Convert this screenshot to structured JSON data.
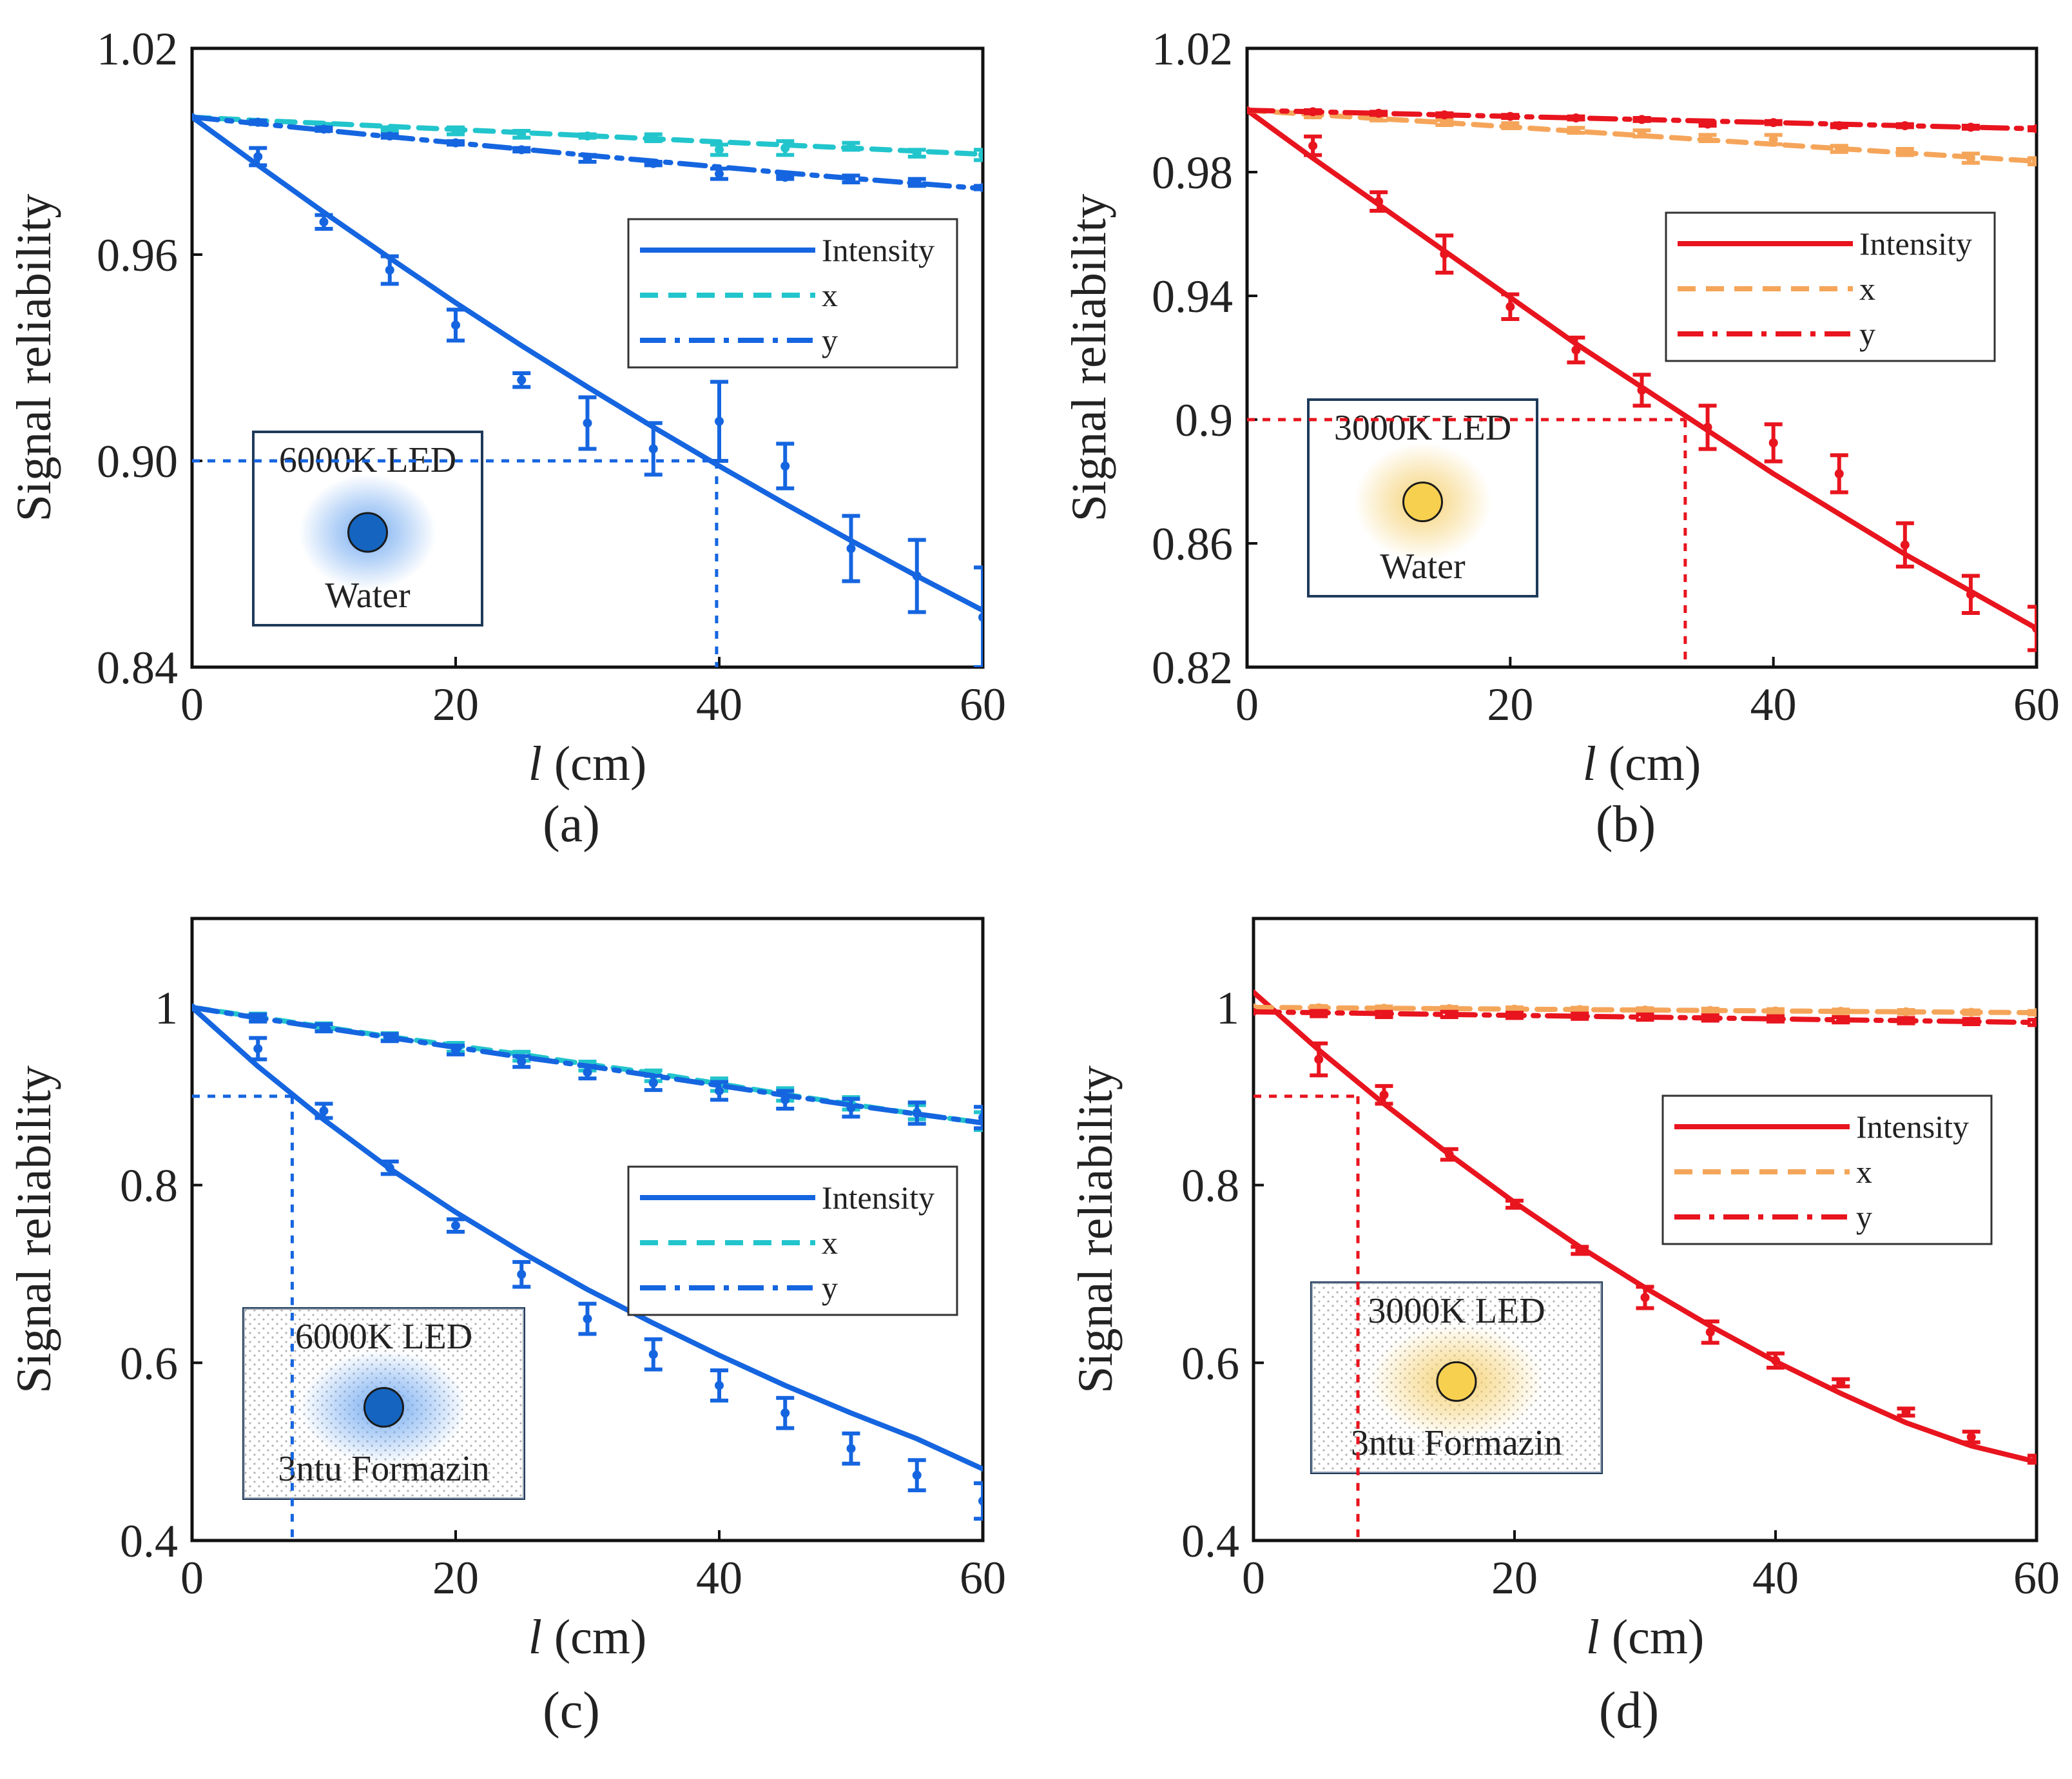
{
  "figure": {
    "background": "#ffffff"
  },
  "chart_data": [
    {
      "panel": "(a)",
      "type": "line",
      "title": "",
      "xlabel": "l (cm)",
      "xlabel_var": "l",
      "xlabel_unit": " (cm)",
      "ylabel": "Signal reliability",
      "xlim": [
        0,
        60
      ],
      "ylim": [
        0.84,
        1.02
      ],
      "xticks": [
        0,
        20,
        40,
        60
      ],
      "yticks": [
        0.84,
        0.9,
        0.96,
        1.02
      ],
      "ytick_labels": [
        "0.84",
        "0.90",
        "0.96",
        "1.02"
      ],
      "colors": {
        "intensity": "#1565e0",
        "x": "#22c5cc",
        "y": "#1565e0"
      },
      "legend": [
        "Intensity",
        "x",
        "y"
      ],
      "inset": {
        "label": "6000K LED",
        "medium": "Water",
        "led_color": "#1565c0",
        "glow_color": "#6fa8f0",
        "speckle": false
      },
      "threshold": {
        "y": 0.9,
        "x": 39.8
      },
      "x": [
        0,
        5,
        10,
        15,
        20,
        25,
        30,
        35,
        40,
        45,
        50,
        55,
        60
      ],
      "series": [
        {
          "name": "Intensity",
          "style": "solid",
          "fit": [
            1.0,
            0.986,
            0.9723,
            0.959,
            0.946,
            0.9335,
            0.9215,
            0.9098,
            0.8985,
            0.8875,
            0.8768,
            0.8665,
            0.8565
          ],
          "points": [
            1.0,
            0.9885,
            0.9695,
            0.9555,
            0.9395,
            0.9235,
            0.911,
            0.9035,
            0.9115,
            0.8985,
            0.8745,
            0.8665,
            0.8545
          ],
          "errors": [
            0,
            0.0025,
            0.002,
            0.004,
            0.0045,
            0.002,
            0.0075,
            0.0075,
            0.0115,
            0.0065,
            0.0095,
            0.0105,
            0.0145
          ]
        },
        {
          "name": "x",
          "style": "dashed",
          "fit": [
            1.0,
            0.999,
            0.9982,
            0.9973,
            0.9964,
            0.9955,
            0.9946,
            0.9937,
            0.9928,
            0.9919,
            0.991,
            0.9901,
            0.9892
          ],
          "points": [
            1.0,
            0.9985,
            0.9975,
            0.9965,
            0.996,
            0.995,
            0.9945,
            0.994,
            0.9905,
            0.991,
            0.9915,
            0.9895,
            0.989
          ],
          "errors": [
            0,
            0.0005,
            0.0005,
            0.0005,
            0.001,
            0.001,
            0.0005,
            0.001,
            0.0015,
            0.002,
            0.001,
            0.001,
            0.0015
          ]
        },
        {
          "name": "y",
          "style": "dashdot",
          "fit": [
            1.0,
            0.9981,
            0.9962,
            0.9943,
            0.9925,
            0.9907,
            0.9889,
            0.9872,
            0.9855,
            0.9838,
            0.9822,
            0.9807,
            0.9792
          ],
          "points": [
            1.0,
            0.9985,
            0.9965,
            0.9945,
            0.9925,
            0.9905,
            0.988,
            0.9865,
            0.9835,
            0.9825,
            0.982,
            0.981,
            0.9795
          ],
          "errors": [
            0,
            0.0005,
            0.0005,
            0.0005,
            0.0005,
            0.0005,
            0.001,
            0.0005,
            0.0015,
            0.0005,
            0.001,
            0.001,
            0.0005
          ]
        }
      ]
    },
    {
      "panel": "(b)",
      "type": "line",
      "title": "",
      "xlabel": "l (cm)",
      "xlabel_var": "l",
      "xlabel_unit": " (cm)",
      "ylabel": "Signal reliability",
      "xlim": [
        0,
        60
      ],
      "ylim": [
        0.82,
        1.02
      ],
      "xticks": [
        0,
        20,
        40,
        60
      ],
      "yticks": [
        0.82,
        0.86,
        0.9,
        0.94,
        0.98,
        1.02
      ],
      "ytick_labels": [
        "0.82",
        "0.86",
        "0.9",
        "0.94",
        "0.98",
        "1.02"
      ],
      "colors": {
        "intensity": "#e8141e",
        "x": "#f5a55a",
        "y": "#e8141e"
      },
      "legend": [
        "Intensity",
        "x",
        "y"
      ],
      "inset": {
        "label": "3000K LED",
        "medium": "Water",
        "led_color": "#f7d050",
        "glow_color": "#f5d070",
        "speckle": false
      },
      "threshold": {
        "y": 0.9,
        "x": 33.3
      },
      "x": [
        0,
        5,
        10,
        15,
        20,
        25,
        30,
        35,
        40,
        45,
        50,
        55,
        60
      ],
      "series": [
        {
          "name": "Intensity",
          "style": "solid",
          "fit": [
            1.0,
            0.9845,
            0.9695,
            0.9545,
            0.9395,
            0.9245,
            0.9105,
            0.8965,
            0.8825,
            0.8695,
            0.8565,
            0.8445,
            0.8325
          ],
          "points": [
            1.0,
            0.9885,
            0.9705,
            0.9535,
            0.9365,
            0.9225,
            0.9095,
            0.8975,
            0.8925,
            0.8825,
            0.8595,
            0.8435,
            0.8325
          ],
          "errors": [
            0,
            0.003,
            0.003,
            0.006,
            0.004,
            0.004,
            0.005,
            0.007,
            0.006,
            0.006,
            0.007,
            0.006,
            0.007
          ]
        },
        {
          "name": "x",
          "style": "dashed",
          "fit": [
            1.0,
            0.9986,
            0.9973,
            0.996,
            0.9946,
            0.9932,
            0.9918,
            0.9904,
            0.989,
            0.9876,
            0.9862,
            0.9849,
            0.9835
          ],
          "points": [
            1.0,
            0.9985,
            0.9975,
            0.996,
            0.995,
            0.9935,
            0.9925,
            0.991,
            0.9905,
            0.9875,
            0.9865,
            0.9845,
            0.9835
          ],
          "errors": [
            0,
            0.0008,
            0.0008,
            0.0008,
            0.0008,
            0.0008,
            0.001,
            0.001,
            0.0015,
            0.001,
            0.001,
            0.0015,
            0.001
          ]
        },
        {
          "name": "y",
          "style": "dashdot",
          "fit": [
            1.0,
            0.9995,
            0.999,
            0.9985,
            0.998,
            0.9975,
            0.997,
            0.9965,
            0.996,
            0.9955,
            0.995,
            0.9945,
            0.994
          ],
          "points": [
            1.0,
            0.9995,
            0.999,
            0.9985,
            0.998,
            0.9975,
            0.997,
            0.9955,
            0.996,
            0.995,
            0.995,
            0.9945,
            0.994
          ],
          "errors": [
            0,
            0.0005,
            0.0005,
            0.0005,
            0.0005,
            0.0005,
            0.0005,
            0.0005,
            0.0005,
            0.0005,
            0.0005,
            0.0005,
            0.0005
          ]
        }
      ]
    },
    {
      "panel": "(c)",
      "type": "line",
      "title": "",
      "xlabel": "l (cm)",
      "xlabel_var": "l",
      "xlabel_unit": " (cm)",
      "ylabel": "Signal reliability",
      "xlim": [
        0,
        60
      ],
      "ylim": [
        0.4,
        1.1
      ],
      "xticks": [
        0,
        20,
        40,
        60
      ],
      "yticks": [
        0.4,
        0.6,
        0.8,
        1.0
      ],
      "ytick_labels": [
        "0.4",
        "0.6",
        "0.8",
        "1"
      ],
      "colors": {
        "intensity": "#1565e0",
        "x": "#22c5cc",
        "y": "#1565e0"
      },
      "legend": [
        "Intensity",
        "x",
        "y"
      ],
      "inset": {
        "label": "6000K LED",
        "medium": "3ntu Formazin",
        "led_color": "#1565c0",
        "glow_color": "#6fa8f0",
        "speckle": true
      },
      "threshold": {
        "y": 0.9,
        "x": 7.6
      },
      "x": [
        0,
        5,
        10,
        15,
        20,
        25,
        30,
        35,
        40,
        45,
        50,
        55,
        60
      ],
      "series": [
        {
          "name": "Intensity",
          "style": "solid",
          "fit": [
            1.0,
            0.9335,
            0.8735,
            0.8185,
            0.7695,
            0.7245,
            0.6825,
            0.6445,
            0.6085,
            0.5745,
            0.5435,
            0.5145,
            0.4805
          ],
          "points": [
            1.0,
            0.9535,
            0.8835,
            0.8195,
            0.7545,
            0.6995,
            0.6495,
            0.6095,
            0.5745,
            0.5435,
            0.5035,
            0.4735,
            0.4445
          ],
          "errors": [
            0,
            0.012,
            0.008,
            0.007,
            0.007,
            0.014,
            0.017,
            0.017,
            0.017,
            0.017,
            0.017,
            0.017,
            0.02
          ]
        },
        {
          "name": "x",
          "style": "dashed",
          "fit": [
            1.0,
            0.989,
            0.978,
            0.967,
            0.957,
            0.947,
            0.936,
            0.926,
            0.914,
            0.902,
            0.891,
            0.88,
            0.87
          ],
          "points": [
            1.0,
            0.989,
            0.978,
            0.967,
            0.955,
            0.945,
            0.934,
            0.923,
            0.913,
            0.902,
            0.892,
            0.882,
            0.872
          ],
          "errors": [
            0,
            0.004,
            0.004,
            0.004,
            0.005,
            0.005,
            0.005,
            0.006,
            0.007,
            0.007,
            0.007,
            0.008,
            0.01
          ]
        },
        {
          "name": "y",
          "style": "dashdot",
          "fit": [
            1.0,
            0.988,
            0.977,
            0.966,
            0.955,
            0.944,
            0.934,
            0.923,
            0.912,
            0.901,
            0.89,
            0.88,
            0.87
          ],
          "points": [
            1.0,
            0.988,
            0.977,
            0.966,
            0.952,
            0.939,
            0.927,
            0.915,
            0.906,
            0.896,
            0.887,
            0.881,
            0.876
          ],
          "errors": [
            0,
            0.004,
            0.004,
            0.004,
            0.005,
            0.006,
            0.007,
            0.008,
            0.01,
            0.01,
            0.01,
            0.012,
            0.012
          ]
        }
      ]
    },
    {
      "panel": "(d)",
      "type": "line",
      "title": "",
      "xlabel": "l (cm)",
      "xlabel_var": "l",
      "xlabel_unit": " (cm)",
      "ylabel": "Signal reliability",
      "xlim": [
        0,
        60
      ],
      "ylim": [
        0.4,
        1.1
      ],
      "xticks": [
        0,
        20,
        40,
        60
      ],
      "yticks": [
        0.4,
        0.6,
        0.8,
        1.0
      ],
      "ytick_labels": [
        "0.4",
        "0.6",
        "0.8",
        "1"
      ],
      "colors": {
        "intensity": "#e8141e",
        "x": "#f5a55a",
        "y": "#e8141e"
      },
      "legend": [
        "Intensity",
        "x",
        "y"
      ],
      "inset": {
        "label": "3000K LED",
        "medium": "3ntu Formazin",
        "led_color": "#f7d050",
        "glow_color": "#f5d070",
        "speckle": true
      },
      "threshold": {
        "y": 0.9,
        "x": 8.0
      },
      "x": [
        0,
        5,
        10,
        15,
        20,
        25,
        30,
        35,
        40,
        45,
        50,
        55,
        60
      ],
      "series": [
        {
          "name": "Intensity",
          "style": "solid",
          "fit": [
            1.017,
            0.952,
            0.8915,
            0.8345,
            0.7805,
            0.7305,
            0.6845,
            0.6415,
            0.6015,
            0.5655,
            0.5325,
            0.5065,
            0.4885
          ],
          "points": [
            1.0,
            0.9415,
            0.9015,
            0.8345,
            0.7785,
            0.7265,
            0.6735,
            0.6345,
            0.6025,
            0.5775,
            0.5445,
            0.5165,
            0.4915
          ],
          "errors": [
            0,
            0.018,
            0.01,
            0.006,
            0.004,
            0.004,
            0.012,
            0.012,
            0.008,
            0.004,
            0.004,
            0.006,
            0.004
          ]
        },
        {
          "name": "x",
          "style": "dashed",
          "fit": [
            1.0,
            0.9995,
            0.999,
            0.9985,
            0.998,
            0.9975,
            0.997,
            0.9965,
            0.996,
            0.9955,
            0.995,
            0.9945,
            0.994
          ],
          "points": [
            1.0,
            0.9995,
            0.999,
            0.9985,
            0.998,
            0.9975,
            0.997,
            0.9965,
            0.996,
            0.9955,
            0.995,
            0.9945,
            0.994
          ],
          "errors": [
            0,
            0.002,
            0.002,
            0.002,
            0.002,
            0.002,
            0.002,
            0.002,
            0.002,
            0.002,
            0.002,
            0.002,
            0.002
          ]
        },
        {
          "name": "y",
          "style": "dashdot",
          "fit": [
            0.995,
            0.994,
            0.993,
            0.992,
            0.991,
            0.99,
            0.989,
            0.988,
            0.987,
            0.986,
            0.985,
            0.984,
            0.983
          ],
          "points": [
            0.995,
            0.993,
            0.992,
            0.992,
            0.991,
            0.99,
            0.989,
            0.988,
            0.987,
            0.986,
            0.985,
            0.984,
            0.983
          ],
          "errors": [
            0,
            0.003,
            0.003,
            0.003,
            0.003,
            0.003,
            0.003,
            0.003,
            0.003,
            0.003,
            0.003,
            0.003,
            0.003
          ]
        }
      ]
    }
  ]
}
